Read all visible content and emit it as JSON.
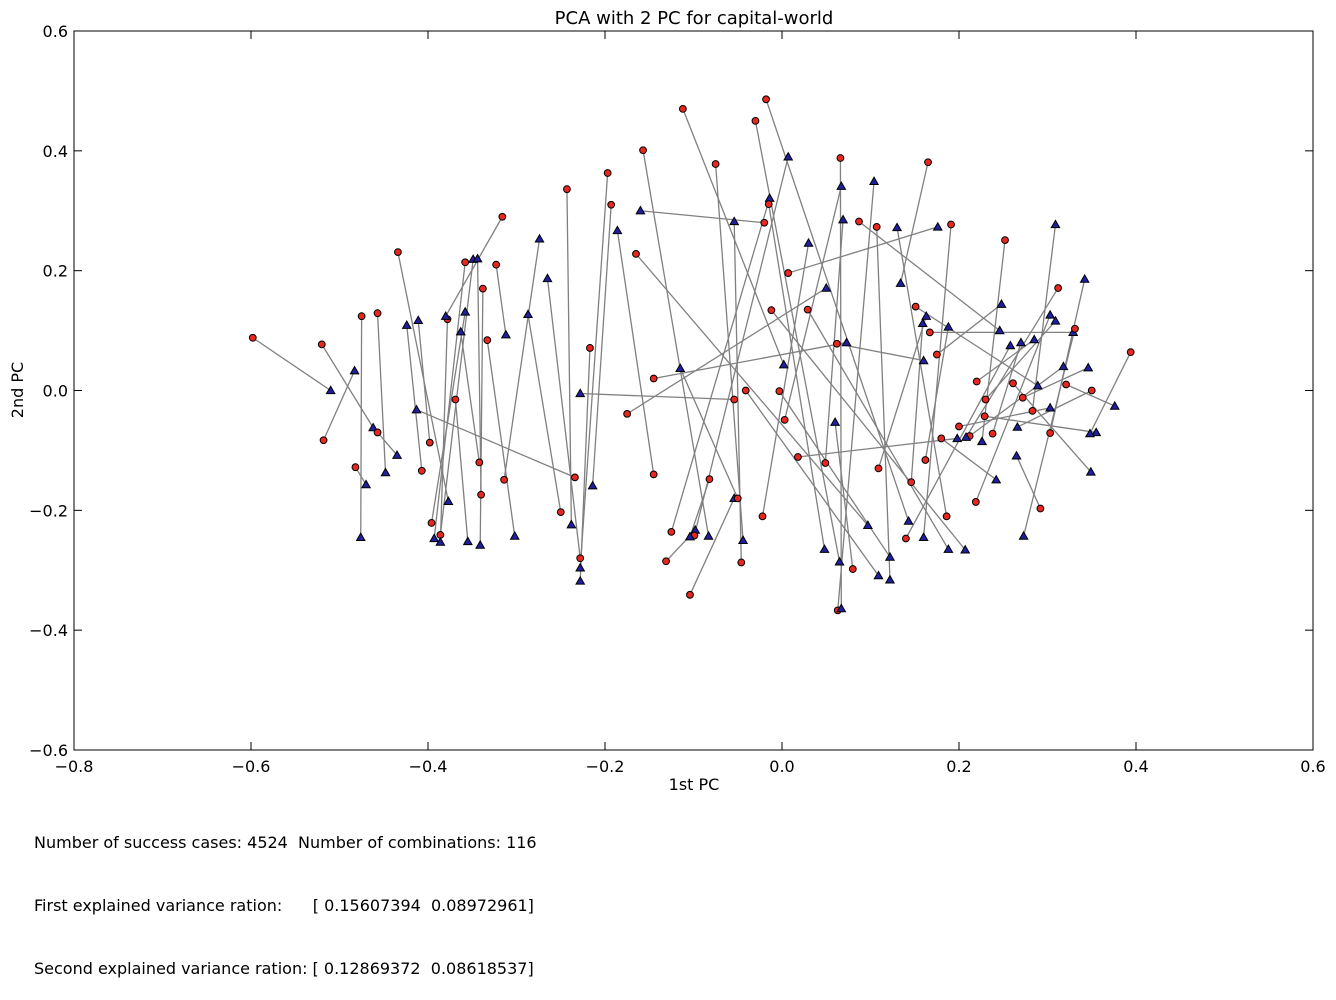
{
  "chart_data": {
    "type": "scatter",
    "title": "PCA with 2 PC for capital-world",
    "xlabel": "1st PC",
    "ylabel": "2nd PC",
    "xlim": [
      -0.8,
      0.6
    ],
    "ylim": [
      -0.6,
      0.6
    ],
    "xticks": [
      "−0.8",
      "−0.6",
      "−0.4",
      "−0.2",
      "0.0",
      "0.2",
      "0.4",
      "0.6"
    ],
    "yticks": [
      "−0.6",
      "−0.4",
      "−0.2",
      "0.0",
      "0.2",
      "0.4",
      "0.6"
    ],
    "grid": false,
    "colors": {
      "circle": "#e8281e",
      "triangle": "#1f1fa0",
      "line": "#808080"
    },
    "pairs": [
      [
        -0.598,
        0.088,
        -0.51,
        0.0
      ],
      [
        -0.52,
        0.077,
        -0.462,
        -0.062
      ],
      [
        -0.518,
        -0.083,
        -0.483,
        0.033
      ],
      [
        -0.482,
        -0.128,
        -0.47,
        -0.157
      ],
      [
        -0.475,
        0.124,
        -0.476,
        -0.245
      ],
      [
        -0.457,
        0.129,
        -0.448,
        -0.137
      ],
      [
        -0.457,
        -0.07,
        -0.435,
        -0.108
      ],
      [
        -0.434,
        0.231,
        -0.377,
        -0.185
      ],
      [
        -0.407,
        -0.134,
        -0.424,
        0.109
      ],
      [
        -0.398,
        -0.087,
        -0.411,
        0.117
      ],
      [
        -0.396,
        -0.221,
        -0.358,
        0.131
      ],
      [
        -0.386,
        -0.241,
        -0.349,
        0.219
      ],
      [
        -0.378,
        0.119,
        -0.386,
        -0.253
      ],
      [
        -0.369,
        -0.015,
        -0.355,
        -0.252
      ],
      [
        -0.358,
        0.214,
        -0.393,
        -0.247
      ],
      [
        -0.342,
        -0.12,
        -0.363,
        0.098
      ],
      [
        -0.34,
        -0.174,
        -0.344,
        0.22
      ],
      [
        -0.338,
        0.17,
        -0.341,
        -0.258
      ],
      [
        -0.333,
        0.084,
        -0.302,
        -0.243
      ],
      [
        -0.323,
        0.21,
        -0.312,
        0.093
      ],
      [
        -0.316,
        0.29,
        -0.38,
        0.124
      ],
      [
        -0.314,
        -0.149,
        -0.274,
        0.253
      ],
      [
        -0.25,
        -0.203,
        -0.287,
        0.127
      ],
      [
        -0.243,
        0.336,
        -0.238,
        -0.224
      ],
      [
        -0.234,
        -0.145,
        -0.413,
        -0.032
      ],
      [
        -0.228,
        -0.28,
        -0.265,
        0.187
      ],
      [
        -0.217,
        0.071,
        -0.228,
        -0.318
      ],
      [
        -0.197,
        0.363,
        -0.228,
        -0.296
      ],
      [
        -0.193,
        0.31,
        -0.214,
        -0.159
      ],
      [
        -0.175,
        -0.039,
        0.05,
        0.171
      ],
      [
        -0.157,
        0.401,
        -0.083,
        -0.243
      ],
      [
        -0.145,
        -0.14,
        -0.186,
        0.267
      ],
      [
        -0.145,
        0.02,
        0.073,
        0.08
      ],
      [
        -0.131,
        -0.285,
        -0.098,
        -0.233
      ],
      [
        -0.125,
        -0.236,
        -0.014,
        0.321
      ],
      [
        -0.112,
        0.47,
        0.002,
        0.043
      ],
      [
        -0.104,
        -0.341,
        -0.054,
        -0.18
      ],
      [
        -0.099,
        -0.242,
        0.007,
        0.39
      ],
      [
        -0.082,
        -0.148,
        -0.104,
        -0.244
      ],
      [
        -0.075,
        0.378,
        -0.044,
        -0.25
      ],
      [
        -0.054,
        -0.015,
        -0.228,
        -0.005
      ],
      [
        -0.046,
        -0.287,
        -0.054,
        0.282
      ],
      [
        -0.03,
        0.45,
        0.065,
        -0.286
      ],
      [
        -0.022,
        -0.21,
        0.03,
        0.246
      ],
      [
        -0.018,
        0.486,
        0.143,
        -0.218
      ],
      [
        -0.015,
        0.311,
        0.048,
        -0.265
      ],
      [
        -0.012,
        0.134,
        0.207,
        -0.266
      ],
      [
        -0.003,
        -0.001,
        0.122,
        -0.278
      ],
      [
        0.003,
        -0.049,
        0.067,
        0.341
      ],
      [
        0.018,
        -0.111,
        0.198,
        -0.08
      ],
      [
        0.029,
        0.135,
        0.188,
        -0.265
      ],
      [
        0.049,
        -0.121,
        0.069,
        0.285
      ],
      [
        0.063,
        -0.367,
        0.104,
        0.349
      ],
      [
        0.066,
        0.388,
        0.067,
        -0.364
      ],
      [
        0.087,
        0.282,
        0.246,
        0.1
      ],
      [
        0.107,
        0.273,
        0.122,
        -0.316
      ],
      [
        0.109,
        -0.13,
        0.163,
        0.124
      ],
      [
        0.146,
        -0.153,
        0.159,
        0.112
      ],
      [
        0.151,
        0.14,
        0.289,
        0.008
      ],
      [
        0.162,
        -0.116,
        0.188,
        0.106
      ],
      [
        0.165,
        0.381,
        0.134,
        0.179
      ],
      [
        0.167,
        0.097,
        0.329,
        0.097
      ],
      [
        0.18,
        -0.08,
        0.242,
        -0.149
      ],
      [
        0.186,
        -0.21,
        0.13,
        0.272
      ],
      [
        0.191,
        0.277,
        0.16,
        -0.245
      ],
      [
        0.212,
        -0.076,
        0.318,
        0.04
      ],
      [
        0.219,
        -0.186,
        0.303,
        0.126
      ],
      [
        0.229,
        -0.043,
        0.355,
        -0.07
      ],
      [
        0.238,
        -0.072,
        0.27,
        0.08
      ],
      [
        0.252,
        0.251,
        0.226,
        -0.085
      ],
      [
        0.261,
        0.012,
        0.349,
        -0.136
      ],
      [
        0.272,
        -0.012,
        0.346,
        0.038
      ],
      [
        0.283,
        -0.034,
        0.309,
        0.277
      ],
      [
        0.292,
        -0.197,
        0.265,
        -0.109
      ],
      [
        0.303,
        -0.071,
        0.342,
        0.186
      ],
      [
        0.312,
        0.171,
        0.208,
        -0.078
      ],
      [
        0.321,
        0.01,
        0.376,
        -0.026
      ],
      [
        0.331,
        0.103,
        0.273,
        -0.243
      ],
      [
        0.35,
        0.0,
        0.266,
        -0.061
      ],
      [
        0.394,
        0.064,
        0.348,
        -0.072
      ],
      [
        -0.041,
        0.0,
        0.109,
        -0.309
      ],
      [
        0.007,
        0.196,
        0.176,
        0.273
      ],
      [
        0.08,
        -0.298,
        0.06,
        -0.053
      ],
      [
        0.062,
        0.078,
        0.16,
        0.05
      ],
      [
        -0.165,
        0.228,
        0.097,
        -0.225
      ],
      [
        0.22,
        0.015,
        0.285,
        0.085
      ],
      [
        0.23,
        -0.015,
        0.309,
        0.116
      ],
      [
        -0.05,
        -0.18,
        -0.115,
        0.037
      ],
      [
        -0.02,
        0.28,
        -0.16,
        0.3
      ],
      [
        0.175,
        0.06,
        0.248,
        0.144
      ],
      [
        0.2,
        -0.06,
        0.303,
        -0.029
      ],
      [
        0.14,
        -0.247,
        0.258,
        0.075
      ]
    ]
  },
  "footer": {
    "line1": "Number of success cases: 4524  Number of combinations: 116",
    "line2": "First explained variance ration:      [ 0.15607394  0.08972961]",
    "line3": "Second explained variance ration: [ 0.12869372  0.08618537]"
  }
}
